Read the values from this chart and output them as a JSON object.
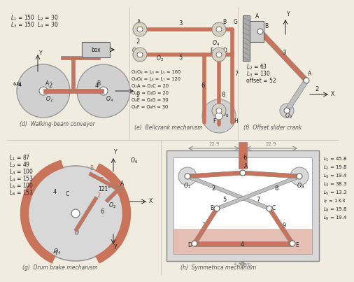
{
  "bg_color": "#f0ece0",
  "link_color": "#c8735a",
  "ground_color": "#c0c0c0",
  "text_color": "#222222",
  "title_color": "#555555",
  "dim_color": "#888888",
  "panels": [
    {
      "id": "d",
      "title": "(d)  Walking-beam conveyor",
      "labels": [
        "$L_1$ = 150  $L_2$ = 30",
        "$L_3$ = 150  $L_4$ = 30"
      ],
      "box_label": "box"
    },
    {
      "id": "e",
      "title": "(e)  Bellcrank mechanism",
      "equations": [
        "O₂O₄ = L₃ = L₅ = 160",
        "O₈O₄ = L₆ = L₇ = 120",
        "O₂A = O₂C = 20",
        "O₄B = O₄D = 20",
        "O₄E = O₄G = 30",
        "O₈F = O₈H = 30"
      ]
    },
    {
      "id": "f",
      "title": "(f)  Offset slider crank",
      "labels": [
        "$L_2$ = 63",
        "$L_3$ = 130",
        "offset = 52"
      ]
    },
    {
      "id": "g",
      "title": "(g)  Drum brake mechanism",
      "labels": [
        "$L_1$ = 87",
        "$L_2$ = 49",
        "$L_3$ = 100",
        "$L_4$ = 153",
        "$L_5$ = 100",
        "$L_6$ = 153"
      ],
      "angle": "121°"
    },
    {
      "id": "h",
      "title": "(h)  Symmetrica mechanism",
      "labels": [
        "$L_1$ = 45.8",
        "$L_2$ = 19.8",
        "$L_3$ = 19.4",
        "$L_4$ = 38.3",
        "$L_5$ = 13.3",
        "$l_7$ = 13.3",
        "$L_8$ = 19.8",
        "$L_9$ = 19.4"
      ],
      "dims": [
        "22.9",
        "22.9",
        "4.5 typ."
      ]
    }
  ]
}
